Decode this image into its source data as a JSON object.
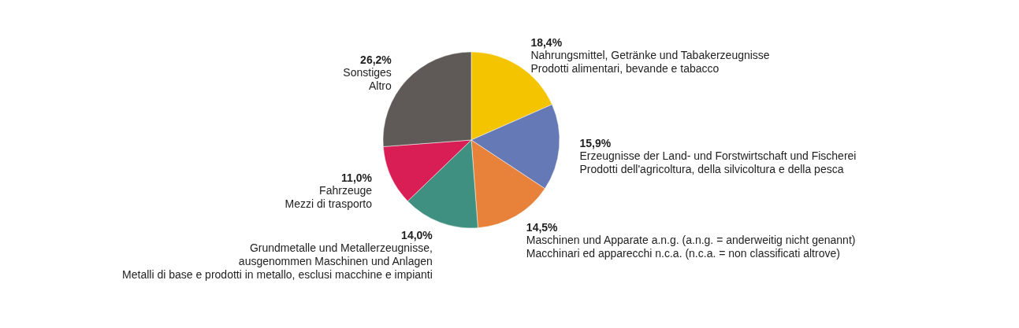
{
  "chart_data": {
    "type": "pie",
    "categories": [
      "Nahrungsmittel, Getränke und Tabakerzeugnisse\nProdotti alimentari, bevande e tabacco",
      "Erzeugnisse der Land- und Forstwirtschaft und Fischerei\nProdotti dell'agricoltura, della silvicoltura e della pesca",
      "Maschinen und Apparate a.n.g. (a.n.g. = anderweitig nicht genannt)\nMacchinari ed apparecchi n.c.a. (n.c.a. = non classificati altrove)",
      "Grundmetalle und Metallerzeugnisse,\nausgenommen Maschinen und Anlagen\nMetalli di base e prodotti in metallo, esclusi macchine e impianti",
      "Fahrzeuge\nMezzi di trasporto",
      "Sonstiges\nAltro"
    ],
    "values": [
      18.4,
      15.9,
      14.5,
      14.0,
      11.0,
      26.2
    ],
    "value_labels": [
      "18,4%",
      "15,9%",
      "14,5%",
      "14,0%",
      "11,0%",
      "26,2%"
    ],
    "colors": [
      "#f5c400",
      "#6479b5",
      "#e8813a",
      "#3f9080",
      "#d81e54",
      "#5f5a58"
    ]
  }
}
